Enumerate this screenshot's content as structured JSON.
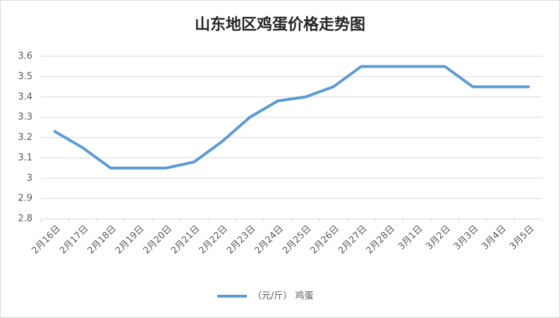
{
  "chart_data": {
    "type": "line",
    "title": "山东地区鸡蛋价格走势图",
    "categories": [
      "2月16日",
      "2月17日",
      "2月18日",
      "2月19日",
      "2月20日",
      "2月21日",
      "2月22日",
      "2月23日",
      "2月24日",
      "2月25日",
      "2月26日",
      "2月27日",
      "2月28日",
      "3月1日",
      "3月2日",
      "3月3日",
      "3月4日",
      "3月5日"
    ],
    "series": [
      {
        "name": "（元/斤） 鸡蛋",
        "color": "#5b9bd5",
        "values": [
          3.23,
          3.15,
          3.05,
          3.05,
          3.05,
          3.08,
          3.18,
          3.3,
          3.38,
          3.4,
          3.45,
          3.55,
          3.55,
          3.55,
          3.55,
          3.45,
          3.45,
          3.45
        ]
      }
    ],
    "ylim": [
      2.8,
      3.6
    ],
    "yticks": [
      2.8,
      2.9,
      3,
      3.1,
      3.2,
      3.3,
      3.4,
      3.5,
      3.6
    ],
    "grid": true,
    "legend": "bottom"
  }
}
